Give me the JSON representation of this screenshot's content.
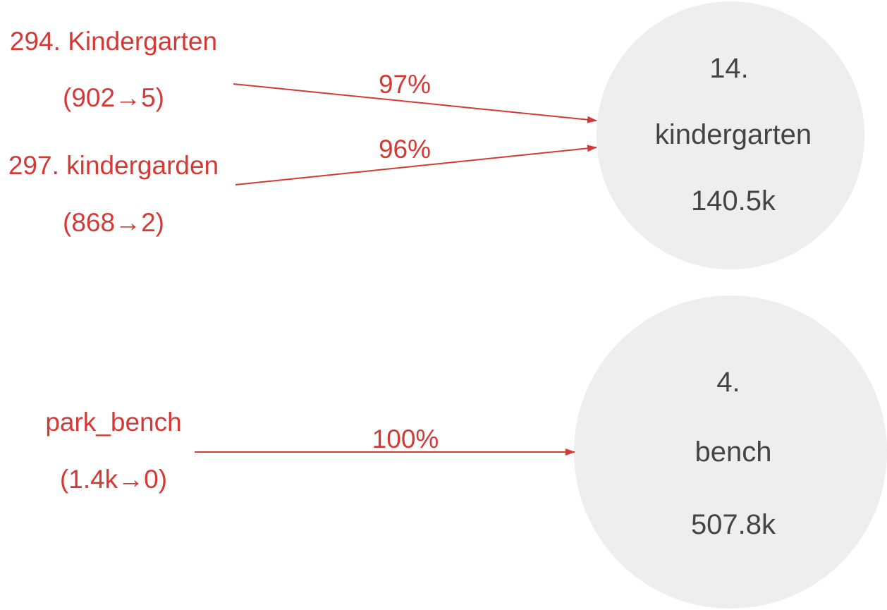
{
  "colors": {
    "source_text": "#d33a36",
    "edge": "#d33a36",
    "target_fill": "#eeeeee",
    "target_text": "#444444"
  },
  "sources": [
    {
      "id": "s1",
      "title": "294. Kindergarten",
      "counts": "(902→5)"
    },
    {
      "id": "s2",
      "title": "297. kindergarden",
      "counts": "(868→2)"
    },
    {
      "id": "s3",
      "title": "park_bench",
      "counts": "(1.4k→0)"
    }
  ],
  "targets": [
    {
      "id": "t1",
      "rank": "14.",
      "name": "kindergarten",
      "count": "140.5k"
    },
    {
      "id": "t2",
      "rank": "4.",
      "name": "bench",
      "count": "507.8k"
    }
  ],
  "edges": [
    {
      "from": "s1",
      "to": "t1",
      "label": "97%"
    },
    {
      "from": "s2",
      "to": "t1",
      "label": "96%"
    },
    {
      "from": "s3",
      "to": "t2",
      "label": "100%"
    }
  ]
}
